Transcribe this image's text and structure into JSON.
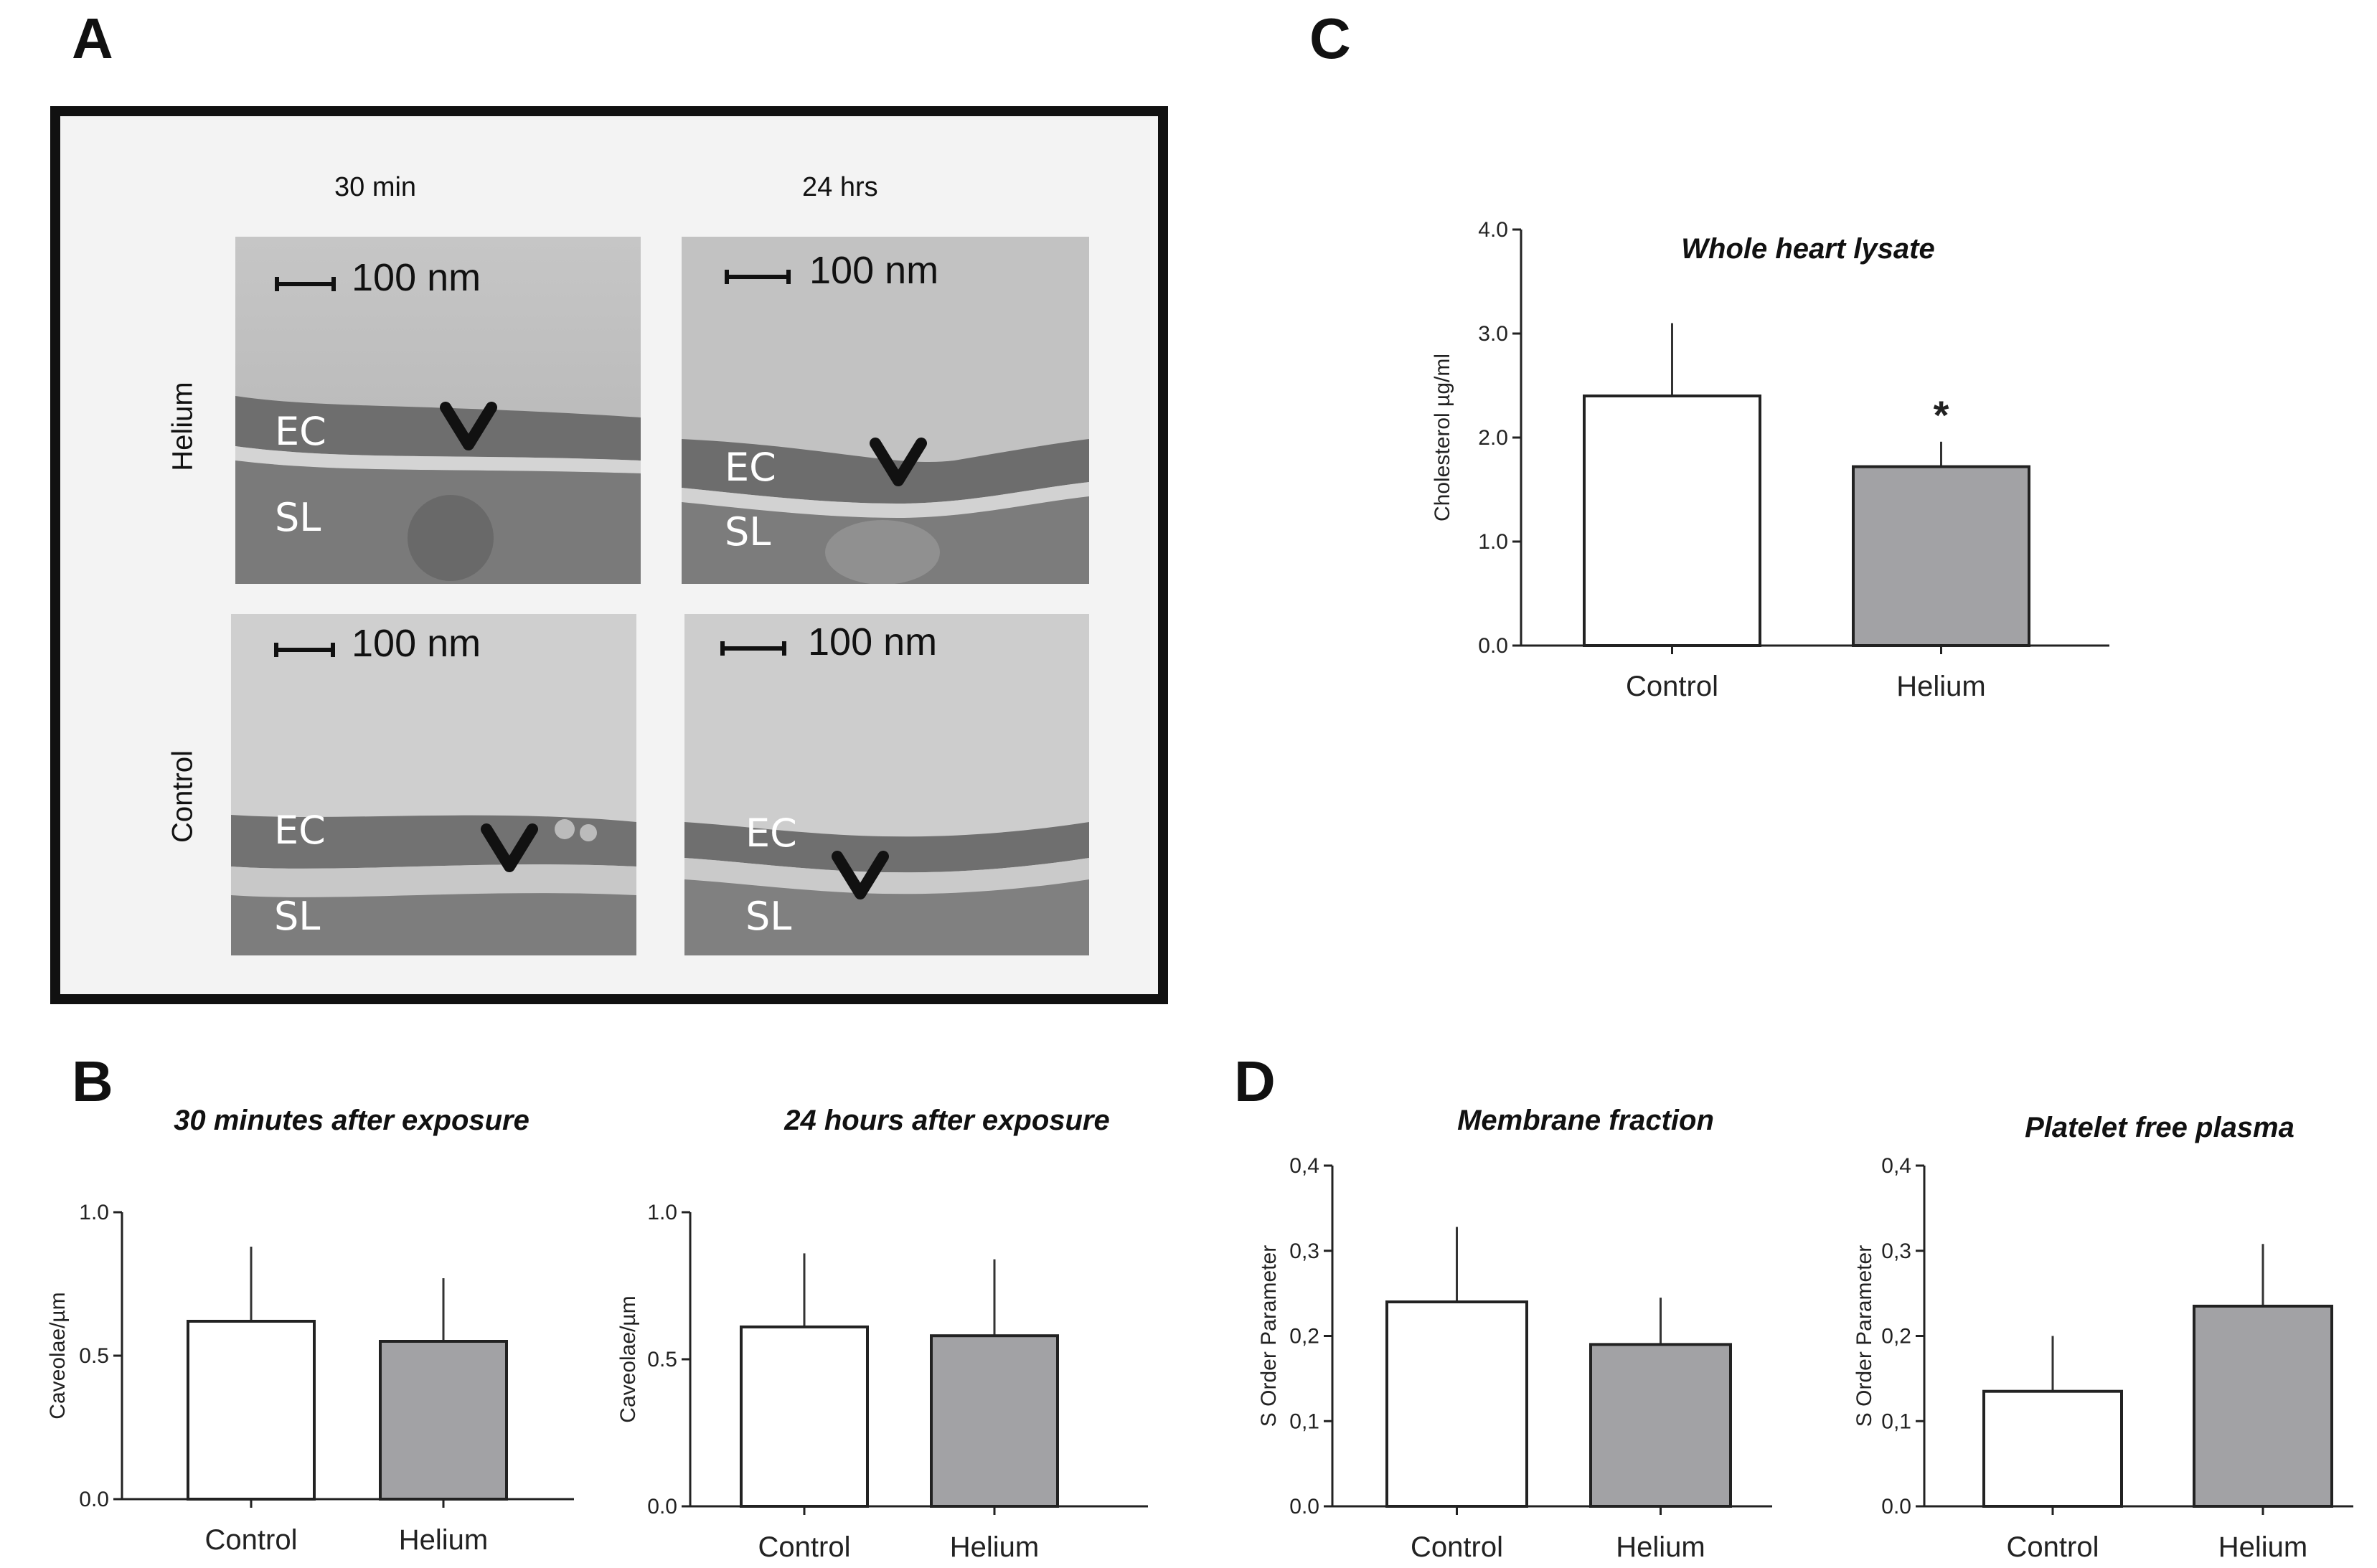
{
  "panels": {
    "a": {
      "letter": "A"
    },
    "b": {
      "letter": "B"
    },
    "c": {
      "letter": "C"
    },
    "d": {
      "letter": "D"
    }
  },
  "micrographs": {
    "columns": [
      "30 min",
      "24 hrs"
    ],
    "rows": [
      "Helium",
      "Control"
    ],
    "scale_bar": "100 nm",
    "label_ec": "EC",
    "label_sl": "SL"
  },
  "chart_data": [
    {
      "id": "c",
      "type": "bar",
      "title": "Whole heart lysate",
      "categories": [
        "Control",
        "Helium"
      ],
      "values": [
        2.4,
        1.72
      ],
      "errors": [
        0.7,
        0.24
      ],
      "ylabel": "Cholesterol µg/ml",
      "ylim": [
        0,
        4
      ],
      "yticks": [
        0,
        1,
        2,
        3,
        4
      ],
      "ytick_labels": [
        "0.0",
        "1.0",
        "2.0",
        "3.0",
        "4.0"
      ],
      "annotation": "*",
      "colors": [
        "#ffffff",
        "#a2a2a5"
      ]
    },
    {
      "id": "b1",
      "type": "bar",
      "title": "30 minutes after exposure",
      "categories": [
        "Control",
        "Helium"
      ],
      "values": [
        0.62,
        0.55
      ],
      "errors": [
        0.26,
        0.22
      ],
      "ylabel": "Caveolae/µm",
      "ylim": [
        0,
        1
      ],
      "yticks": [
        0,
        0.5,
        1
      ],
      "ytick_labels": [
        "0.0",
        "0.5",
        "1.0"
      ],
      "colors": [
        "#ffffff",
        "#a2a2a5"
      ]
    },
    {
      "id": "b2",
      "type": "bar",
      "title": "24 hours after exposure",
      "categories": [
        "Control",
        "Helium"
      ],
      "values": [
        0.61,
        0.58
      ],
      "errors": [
        0.25,
        0.26
      ],
      "ylabel": "Caveolae/µm",
      "ylim": [
        0,
        1
      ],
      "yticks": [
        0,
        0.5,
        1
      ],
      "ytick_labels": [
        "0.0",
        "0.5",
        "1.0"
      ],
      "colors": [
        "#ffffff",
        "#a2a2a5"
      ]
    },
    {
      "id": "d1",
      "type": "bar",
      "title": "Membrane fraction",
      "categories": [
        "Control",
        "Helium"
      ],
      "values": [
        0.24,
        0.19
      ],
      "errors": [
        0.088,
        0.055
      ],
      "ylabel": "S Order Parameter",
      "ylim": [
        0,
        0.4
      ],
      "yticks": [
        0,
        0.1,
        0.2,
        0.3,
        0.4
      ],
      "ytick_labels": [
        "0.0",
        "0,1",
        "0,2",
        "0,3",
        "0,4"
      ],
      "colors": [
        "#ffffff",
        "#a2a2a5"
      ]
    },
    {
      "id": "d2",
      "type": "bar",
      "title": "Platelet free plasma",
      "categories": [
        "Control",
        "Helium"
      ],
      "values": [
        0.135,
        0.235
      ],
      "errors": [
        0.065,
        0.073
      ],
      "ylabel": "S Order Parameter",
      "ylim": [
        0,
        0.4
      ],
      "yticks": [
        0,
        0.1,
        0.2,
        0.3,
        0.4
      ],
      "ytick_labels": [
        "0.0",
        "0,1",
        "0,2",
        "0,3",
        "0,4"
      ],
      "colors": [
        "#ffffff",
        "#a2a2a5"
      ]
    }
  ]
}
